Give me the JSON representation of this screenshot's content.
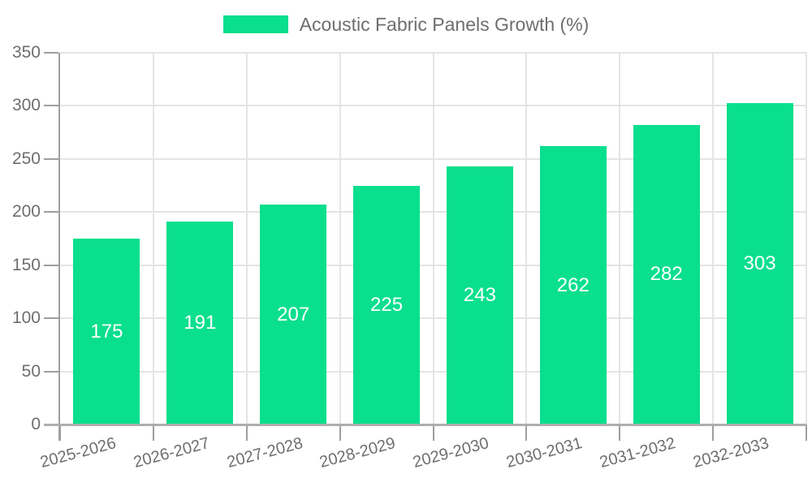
{
  "legend": {
    "label": "Acoustic Fabric Panels Growth (%)",
    "position": "top"
  },
  "chart_data": {
    "type": "bar",
    "title": "Acoustic Fabric Panels Growth (%)",
    "categories": [
      "2025-2026",
      "2026-2027",
      "2027-2028",
      "2028-2029",
      "2029-2030",
      "2030-2031",
      "2031-2032",
      "2032-2033"
    ],
    "values": [
      175,
      191,
      207,
      225,
      243,
      262,
      282,
      303
    ],
    "xlabel": "",
    "ylabel": "",
    "ylim": [
      0,
      350
    ],
    "yticks": [
      0,
      50,
      100,
      150,
      200,
      250,
      300,
      350
    ],
    "grid": true,
    "legend_position": "top",
    "bar_color": "#09df8d",
    "value_label_color": "#ffffff",
    "axis_text_color": "#6e6e6e",
    "grid_color": "#e4e4e4",
    "axis_line_color": "#9e9e9e",
    "bottom_axis_color": "#aeaeae",
    "background_color": "#ffffff"
  }
}
